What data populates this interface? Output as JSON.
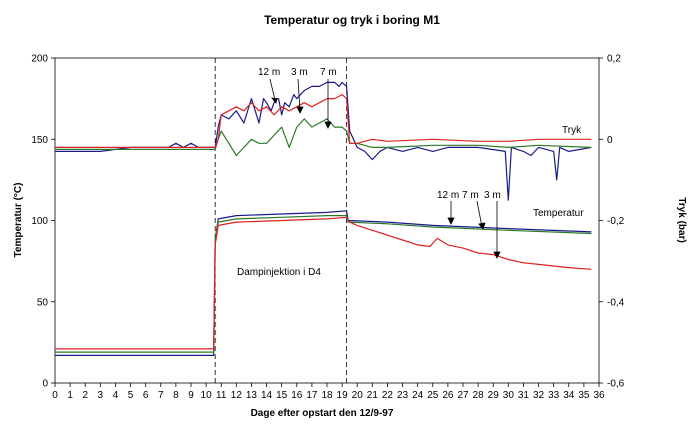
{
  "chart_data": {
    "type": "line",
    "title": "Temperatur og tryk i boring M1",
    "xlabel": "Dage efter opstart den 12/9-97",
    "ylabel_left": "Temperatur (°C)",
    "ylabel_right": "Tryk (bar)",
    "xlim": [
      0,
      36
    ],
    "ylim_left": [
      0,
      200
    ],
    "ylim_right": [
      -0.6,
      0.2
    ],
    "xticks": [
      "0",
      "1",
      "2",
      "3",
      "4",
      "5",
      "6",
      "7",
      "8",
      "9",
      "10",
      "11",
      "12",
      "13",
      "14",
      "15",
      "16",
      "17",
      "18",
      "19",
      "20",
      "21",
      "22",
      "23",
      "24",
      "25",
      "26",
      "27",
      "28",
      "29",
      "30",
      "31",
      "32",
      "33",
      "34",
      "35",
      "36"
    ],
    "yticks_left": [
      "0",
      "50",
      "100",
      "150",
      "200"
    ],
    "yticks_right": [
      "-0,6",
      "-0,4",
      "-0,2",
      "0",
      "0,2"
    ],
    "grid": false,
    "vlines_x": [
      10.6,
      19.3
    ],
    "annotations": {
      "tryk": "Tryk",
      "temperatur": "Temperatur",
      "dampinjektion": "Dampinjektion i D4",
      "tryk_12m": "12 m",
      "tryk_3m": "3 m",
      "tryk_7m": "7 m",
      "temp_12m_7m": "12 m 7 m",
      "temp_3m": "3 m"
    },
    "series": [
      {
        "color": "#1a1a8c",
        "axis": "left",
        "x": [
          0,
          10.5,
          10.6,
          10.8,
          12,
          15,
          18,
          19.3,
          19.4,
          22,
          25,
          30,
          35.5
        ],
        "y": [
          17,
          17,
          88,
          101,
          103,
          104,
          105,
          106,
          100,
          99,
          97,
          95,
          93
        ]
      },
      {
        "color": "#2a7a2a",
        "axis": "left",
        "x": [
          0,
          10.5,
          10.6,
          10.8,
          12,
          15,
          18,
          19.3,
          19.4,
          22,
          25,
          30,
          35.5
        ],
        "y": [
          19,
          19,
          90,
          99,
          101,
          102,
          103,
          103,
          99,
          98,
          96,
          94,
          92
        ]
      },
      {
        "color": "#e02020",
        "axis": "left",
        "x": [
          0,
          10.5,
          10.6,
          10.8,
          12,
          15,
          18,
          19.3,
          19.5,
          20,
          21,
          22,
          23,
          24,
          24.8,
          25.3,
          26,
          27,
          28,
          29,
          30,
          31,
          32,
          33,
          34,
          35.5
        ],
        "y": [
          21,
          21,
          85,
          97,
          99,
          100,
          101,
          102,
          99,
          97,
          94,
          91,
          88,
          85,
          84,
          89,
          85,
          83,
          80,
          79,
          76,
          74,
          73,
          72,
          71,
          70
        ]
      },
      {
        "color": "#1a1a8c",
        "axis": "right",
        "x": [
          0,
          3,
          5,
          7.5,
          8,
          8.5,
          9,
          9.5,
          10.6,
          10.8,
          11,
          11.5,
          12,
          12.5,
          13,
          13.5,
          13.8,
          14,
          14.3,
          14.6,
          14.8,
          15,
          15.2,
          15.5,
          15.8,
          16,
          16.5,
          17,
          17.5,
          18,
          18.5,
          18.8,
          19,
          19.3,
          19.5,
          20,
          20.5,
          21,
          21.5,
          22,
          23,
          24,
          25,
          26,
          28,
          29.8,
          30,
          30.2,
          31,
          31.5,
          32,
          33,
          33.2,
          33.4,
          34,
          35.5
        ],
        "y": [
          -0.03,
          -0.03,
          -0.02,
          -0.02,
          -0.01,
          -0.02,
          -0.01,
          -0.02,
          -0.02,
          0.03,
          0.06,
          0.05,
          0.07,
          0.04,
          0.1,
          0.04,
          0.1,
          0.09,
          0.07,
          0.1,
          0.1,
          0.06,
          0.09,
          0.08,
          0.11,
          0.1,
          0.12,
          0.13,
          0.13,
          0.14,
          0.14,
          0.13,
          0.14,
          0.13,
          0.02,
          -0.02,
          -0.03,
          -0.05,
          -0.03,
          -0.02,
          -0.03,
          -0.02,
          -0.03,
          -0.02,
          -0.02,
          -0.03,
          -0.15,
          -0.02,
          -0.03,
          -0.04,
          -0.02,
          -0.03,
          -0.1,
          -0.02,
          -0.03,
          -0.02
        ]
      },
      {
        "color": "#2a7a2a",
        "axis": "right",
        "x": [
          0,
          5,
          10.6,
          10.8,
          11,
          11.5,
          12,
          12.5,
          13,
          13.5,
          14,
          14.5,
          15,
          15.5,
          16,
          16.5,
          17,
          17.5,
          18,
          18.5,
          19,
          19.3,
          19.5,
          20,
          21,
          22,
          25,
          28,
          30,
          32,
          35.5
        ],
        "y": [
          -0.025,
          -0.025,
          -0.025,
          0.0,
          0.02,
          -0.01,
          -0.04,
          -0.02,
          0.0,
          -0.01,
          -0.01,
          0.01,
          0.03,
          -0.02,
          0.03,
          0.05,
          0.03,
          0.04,
          0.05,
          0.03,
          0.03,
          0.02,
          -0.01,
          -0.01,
          -0.02,
          -0.02,
          -0.015,
          -0.015,
          -0.02,
          -0.015,
          -0.02
        ]
      },
      {
        "color": "#e02020",
        "axis": "right",
        "x": [
          0,
          5,
          10.6,
          10.8,
          11,
          11.5,
          12,
          12.5,
          13,
          13.5,
          14,
          14.5,
          15,
          15.5,
          16,
          16.5,
          17,
          17.5,
          18,
          18.5,
          19,
          19.3,
          19.5,
          20,
          21,
          22,
          25,
          28,
          30,
          32,
          35.5
        ],
        "y": [
          -0.02,
          -0.02,
          -0.02,
          0.0,
          0.06,
          0.07,
          0.08,
          0.07,
          0.09,
          0.07,
          0.08,
          0.06,
          0.08,
          0.07,
          0.08,
          0.09,
          0.08,
          0.09,
          0.1,
          0.1,
          0.11,
          0.1,
          -0.01,
          -0.01,
          0.0,
          -0.005,
          0.0,
          -0.005,
          -0.005,
          0.0,
          0.0
        ]
      }
    ]
  }
}
